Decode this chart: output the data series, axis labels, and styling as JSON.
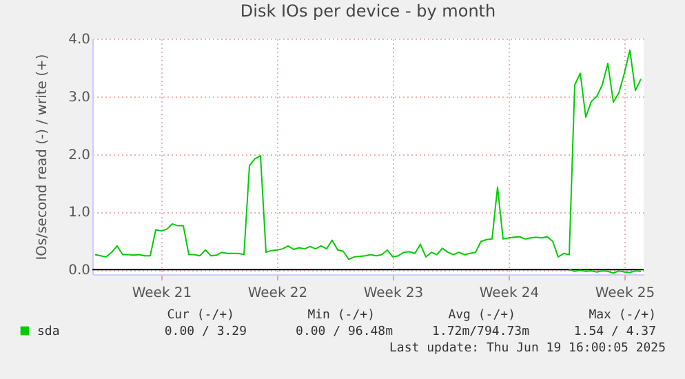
{
  "chart_data": {
    "type": "line",
    "title": "Disk IOs per device - by month",
    "ylabel": "IOs/second read (-) / write (+)",
    "categories": [
      null,
      null,
      null,
      null,
      null,
      null,
      null,
      null,
      null,
      null,
      null,
      null,
      "Week 21",
      null,
      null,
      null,
      null,
      null,
      null,
      null,
      null,
      null,
      null,
      null,
      null,
      null,
      null,
      null,
      null,
      null,
      null,
      null,
      null,
      "Week 22",
      null,
      null,
      null,
      null,
      null,
      null,
      null,
      null,
      null,
      null,
      null,
      null,
      null,
      null,
      null,
      null,
      null,
      null,
      null,
      null,
      "Week 23",
      null,
      null,
      null,
      null,
      null,
      null,
      null,
      null,
      null,
      null,
      null,
      null,
      null,
      null,
      null,
      null,
      null,
      null,
      null,
      null,
      "Week 24",
      null,
      null,
      null,
      null,
      null,
      null,
      null,
      null,
      null,
      null,
      null,
      null,
      null,
      null,
      null,
      null,
      null,
      null,
      null,
      null,
      "Week 25",
      null,
      null,
      null
    ],
    "ylim": [
      -0.08,
      4
    ],
    "yticks": [
      {
        "value": 0,
        "label": "0.0"
      },
      {
        "value": 1,
        "label": "1.0"
      },
      {
        "value": 2,
        "label": "2.0"
      },
      {
        "value": 3,
        "label": "3.0"
      },
      {
        "value": 4,
        "label": "4.0"
      }
    ],
    "grid": true,
    "legend": "bottom left",
    "series": [
      {
        "name": "sda",
        "color": "#00cc00",
        "values": [
          0.26,
          0.24,
          0.22,
          0.3,
          0.41,
          0.26,
          0.26,
          0.25,
          0.26,
          0.24,
          0.24,
          0.69,
          0.67,
          0.7,
          0.79,
          0.76,
          0.76,
          0.26,
          0.26,
          0.24,
          0.34,
          0.24,
          0.25,
          0.3,
          0.28,
          0.28,
          0.28,
          0.26,
          1.8,
          1.92,
          1.97,
          0.3,
          0.33,
          0.34,
          0.36,
          0.41,
          0.35,
          0.38,
          0.36,
          0.4,
          0.36,
          0.41,
          0.36,
          0.51,
          0.34,
          0.32,
          0.18,
          0.22,
          0.23,
          0.24,
          0.26,
          0.24,
          0.26,
          0.34,
          0.22,
          0.24,
          0.3,
          0.31,
          0.28,
          0.44,
          0.22,
          0.3,
          0.26,
          0.37,
          0.3,
          0.26,
          0.3,
          0.26,
          0.28,
          0.3,
          0.49,
          0.52,
          0.53,
          1.43,
          0.53,
          0.55,
          0.56,
          0.57,
          0.53,
          0.55,
          0.56,
          0.55,
          0.57,
          0.49,
          0.22,
          0.28,
          0.26,
          3.2,
          3.4,
          2.64,
          2.91,
          3.0,
          3.2,
          3.57,
          2.9,
          3.06,
          3.4,
          3.8,
          3.1,
          3.3
        ]
      },
      {
        "color": "#00cc00",
        "values": [
          null,
          null,
          null,
          null,
          null,
          null,
          null,
          null,
          null,
          null,
          null,
          null,
          null,
          null,
          null,
          null,
          null,
          null,
          null,
          null,
          null,
          null,
          null,
          null,
          null,
          null,
          null,
          null,
          null,
          null,
          null,
          null,
          null,
          null,
          null,
          null,
          null,
          null,
          null,
          null,
          null,
          null,
          null,
          null,
          null,
          null,
          null,
          null,
          null,
          null,
          null,
          null,
          null,
          null,
          null,
          null,
          null,
          null,
          null,
          null,
          null,
          null,
          null,
          null,
          null,
          null,
          null,
          null,
          null,
          null,
          null,
          null,
          null,
          null,
          null,
          null,
          null,
          null,
          null,
          null,
          null,
          null,
          null,
          null,
          null,
          null,
          0,
          -0.03,
          -0.01,
          -0.03,
          -0.02,
          -0.04,
          -0.02,
          -0.03,
          -0.06,
          -0.02,
          -0.04,
          -0.05,
          -0.02,
          -0.03
        ]
      }
    ],
    "ref_lines": [
      {
        "axis": "y",
        "value": 0,
        "color": "#000000"
      }
    ],
    "annotations": [
      "Cur (-/+)",
      "Min (-/+)",
      "Avg (-/+)",
      "Max (-/+)",
      "0.00 /  3.29",
      "0.00 / 96.48m",
      "1.72m/794.73m",
      "1.54 /  4.37",
      "Last update: Thu Jun 19 16:00:05 2025"
    ]
  }
}
